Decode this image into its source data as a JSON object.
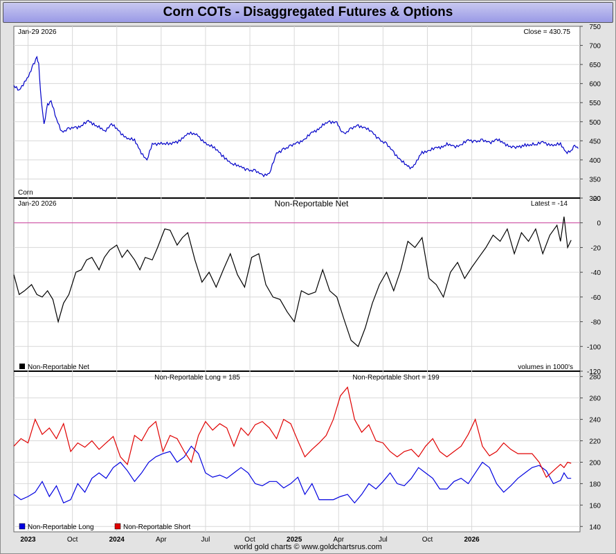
{
  "title": "Corn COTs - Disaggregated Futures & Options",
  "footer": "world gold charts © www.goldchartsrus.com",
  "colors": {
    "price": "#0000c8",
    "net": "#000000",
    "long": "#0000e0",
    "short": "#e00000",
    "zero": "#d040a0"
  },
  "chart_data": [
    {
      "type": "line",
      "panel": "price",
      "date_label": "Jan-29  2026",
      "latest_label": "Close = 430.75",
      "corner_label": "Corn",
      "ylim": [
        300,
        750
      ],
      "yticks": [
        300,
        350,
        400,
        450,
        500,
        550,
        600,
        650,
        700,
        750
      ],
      "x_range": [
        2022.92,
        2026.11
      ],
      "series": [
        {
          "x": [
            2022.92,
            2022.95,
            2022.98,
            2023.01,
            2023.03,
            2023.05,
            2023.06,
            2023.07,
            2023.09,
            2023.11,
            2023.13,
            2023.16,
            2023.19,
            2023.23,
            2023.27,
            2023.3,
            2023.34,
            2023.37,
            2023.4,
            2023.43,
            2023.47,
            2023.5,
            2023.55,
            2023.6,
            2023.63,
            2023.67,
            2023.7,
            2023.75,
            2023.8,
            2023.85,
            2023.9,
            2023.95,
            2024.0,
            2024.05,
            2024.1,
            2024.15,
            2024.2,
            2024.24,
            2024.28,
            2024.32,
            2024.36,
            2024.4,
            2024.44,
            2024.48,
            2024.52,
            2024.56,
            2024.6,
            2024.63,
            2024.66,
            2024.7,
            2024.74,
            2024.76,
            2024.78,
            2024.82,
            2024.86,
            2024.9,
            2024.94,
            2024.98,
            2025.02,
            2025.06,
            2025.1,
            2025.13,
            2025.16,
            2025.19,
            2025.22,
            2025.26,
            2025.3,
            2025.33,
            2025.36,
            2025.4,
            2025.44,
            2025.48,
            2025.52,
            2025.56,
            2025.6,
            2025.64,
            2025.67,
            2025.7,
            2025.74,
            2025.8,
            2025.86,
            2025.9,
            2025.95,
            2026.0,
            2026.03,
            2026.06,
            2026.08,
            2026.1
          ],
          "y": [
            595,
            580,
            605,
            625,
            650,
            670,
            650,
            580,
            490,
            545,
            555,
            505,
            475,
            480,
            485,
            490,
            500,
            495,
            485,
            475,
            495,
            480,
            460,
            450,
            425,
            400,
            440,
            445,
            440,
            450,
            470,
            465,
            445,
            430,
            410,
            390,
            380,
            375,
            370,
            360,
            365,
            415,
            430,
            435,
            445,
            455,
            470,
            480,
            490,
            500,
            500,
            475,
            470,
            480,
            490,
            485,
            470,
            455,
            440,
            420,
            400,
            385,
            380,
            395,
            420,
            425,
            430,
            435,
            440,
            435,
            440,
            450,
            450,
            450,
            445,
            455,
            445,
            440,
            430,
            440,
            440,
            445,
            440,
            440,
            420,
            425,
            435,
            430
          ]
        }
      ]
    },
    {
      "type": "line",
      "panel": "net",
      "date_label": "Jan-20  2026",
      "title": "Non-Reportable Net",
      "latest_label": "Latest = -14",
      "legend_label": "Non-Reportable Net",
      "units_label": "volumes in 1000's",
      "ylim": [
        -120,
        20
      ],
      "yticks": [
        -120,
        -100,
        -80,
        -60,
        -40,
        -20,
        0,
        20
      ],
      "x_range": [
        2022.92,
        2026.11
      ],
      "series": [
        {
          "name": "Non-Reportable Net",
          "x": [
            2022.92,
            2022.95,
            2022.98,
            2023.02,
            2023.05,
            2023.08,
            2023.11,
            2023.14,
            2023.17,
            2023.2,
            2023.23,
            2023.27,
            2023.3,
            2023.33,
            2023.36,
            2023.4,
            2023.43,
            2023.46,
            2023.5,
            2023.53,
            2023.56,
            2023.6,
            2023.63,
            2023.66,
            2023.7,
            2023.73,
            2023.77,
            2023.8,
            2023.84,
            2023.87,
            2023.9,
            2023.94,
            2023.98,
            2024.02,
            2024.06,
            2024.1,
            2024.14,
            2024.18,
            2024.22,
            2024.26,
            2024.3,
            2024.34,
            2024.38,
            2024.42,
            2024.46,
            2024.5,
            2024.54,
            2024.58,
            2024.62,
            2024.66,
            2024.7,
            2024.74,
            2024.78,
            2024.82,
            2024.86,
            2024.9,
            2024.94,
            2024.98,
            2025.02,
            2025.06,
            2025.1,
            2025.14,
            2025.18,
            2025.22,
            2025.26,
            2025.3,
            2025.34,
            2025.38,
            2025.42,
            2025.46,
            2025.5,
            2025.54,
            2025.58,
            2025.62,
            2025.66,
            2025.7,
            2025.74,
            2025.78,
            2025.82,
            2025.86,
            2025.9,
            2025.94,
            2025.98,
            2026.0,
            2026.02,
            2026.04,
            2026.06
          ],
          "y": [
            -42,
            -58,
            -55,
            -50,
            -58,
            -60,
            -55,
            -62,
            -80,
            -65,
            -58,
            -40,
            -38,
            -30,
            -28,
            -38,
            -28,
            -22,
            -18,
            -28,
            -22,
            -30,
            -38,
            -28,
            -30,
            -20,
            -5,
            -6,
            -18,
            -12,
            -8,
            -30,
            -48,
            -40,
            -52,
            -38,
            -25,
            -42,
            -52,
            -28,
            -25,
            -50,
            -60,
            -62,
            -72,
            -80,
            -55,
            -58,
            -56,
            -38,
            -55,
            -60,
            -78,
            -95,
            -100,
            -85,
            -65,
            -50,
            -40,
            -55,
            -38,
            -15,
            -20,
            -12,
            -45,
            -50,
            -60,
            -40,
            -32,
            -45,
            -36,
            -28,
            -20,
            -10,
            -15,
            -5,
            -25,
            -8,
            -15,
            -5,
            -25,
            -10,
            -2,
            -15,
            5,
            -20,
            -14
          ]
        }
      ]
    },
    {
      "type": "line",
      "panel": "long-short",
      "long_label": "Non-Reportable Long = 185",
      "short_label": "Non-Reportable Short = 199",
      "ylim": [
        135,
        285
      ],
      "yticks": [
        140,
        160,
        180,
        200,
        220,
        240,
        260,
        280
      ],
      "x_range": [
        2022.92,
        2026.11
      ],
      "xticks": [
        {
          "x": 2023.0,
          "label": "2023",
          "major": true
        },
        {
          "x": 2023.25,
          "label": "Oct",
          "major": false
        },
        {
          "x": 2023.5,
          "label": "2024",
          "major": true
        },
        {
          "x": 2023.75,
          "label": "Apr",
          "major": false
        },
        {
          "x": 2024.0,
          "label": "Jul",
          "major": false
        },
        {
          "x": 2024.25,
          "label": "Oct",
          "major": false
        },
        {
          "x": 2024.5,
          "label": "2025",
          "major": true
        },
        {
          "x": 2024.75,
          "label": "Apr",
          "major": false
        },
        {
          "x": 2025.0,
          "label": "Jul",
          "major": false
        },
        {
          "x": 2025.25,
          "label": "Oct",
          "major": false
        },
        {
          "x": 2025.5,
          "label": "2026",
          "major": true
        }
      ],
      "series": [
        {
          "name": "Non-Reportable Long",
          "color": "#0000e0",
          "x": [
            2022.92,
            2022.96,
            2023.0,
            2023.04,
            2023.08,
            2023.12,
            2023.16,
            2023.2,
            2023.24,
            2023.28,
            2023.32,
            2023.36,
            2023.4,
            2023.44,
            2023.48,
            2023.52,
            2023.56,
            2023.6,
            2023.64,
            2023.68,
            2023.72,
            2023.76,
            2023.8,
            2023.84,
            2023.88,
            2023.92,
            2023.96,
            2024.0,
            2024.04,
            2024.08,
            2024.12,
            2024.16,
            2024.2,
            2024.24,
            2024.28,
            2024.32,
            2024.36,
            2024.4,
            2024.44,
            2024.48,
            2024.52,
            2024.56,
            2024.6,
            2024.64,
            2024.68,
            2024.72,
            2024.76,
            2024.8,
            2024.84,
            2024.88,
            2024.92,
            2024.96,
            2025.0,
            2025.04,
            2025.08,
            2025.12,
            2025.16,
            2025.2,
            2025.24,
            2025.28,
            2025.32,
            2025.36,
            2025.4,
            2025.44,
            2025.48,
            2025.52,
            2025.56,
            2025.6,
            2025.64,
            2025.68,
            2025.72,
            2025.76,
            2025.8,
            2025.84,
            2025.88,
            2025.92,
            2025.96,
            2026.0,
            2026.02,
            2026.04,
            2026.06
          ],
          "y": [
            170,
            165,
            168,
            172,
            182,
            168,
            178,
            162,
            165,
            180,
            172,
            185,
            190,
            185,
            195,
            200,
            192,
            182,
            190,
            200,
            205,
            208,
            210,
            200,
            205,
            215,
            208,
            190,
            186,
            188,
            185,
            190,
            195,
            190,
            180,
            178,
            182,
            182,
            176,
            180,
            186,
            170,
            180,
            165,
            165,
            165,
            168,
            170,
            162,
            170,
            180,
            175,
            182,
            190,
            180,
            178,
            185,
            195,
            190,
            185,
            175,
            175,
            182,
            185,
            180,
            190,
            200,
            195,
            180,
            172,
            178,
            185,
            190,
            195,
            197,
            192,
            180,
            183,
            190,
            185,
            185
          ]
        },
        {
          "name": "Non-Reportable Short",
          "color": "#e00000",
          "x": [
            2022.92,
            2022.96,
            2023.0,
            2023.04,
            2023.08,
            2023.12,
            2023.16,
            2023.2,
            2023.24,
            2023.28,
            2023.32,
            2023.36,
            2023.4,
            2023.44,
            2023.48,
            2023.52,
            2023.56,
            2023.6,
            2023.64,
            2023.68,
            2023.72,
            2023.76,
            2023.8,
            2023.84,
            2023.88,
            2023.92,
            2023.96,
            2024.0,
            2024.04,
            2024.08,
            2024.12,
            2024.16,
            2024.2,
            2024.24,
            2024.28,
            2024.32,
            2024.36,
            2024.4,
            2024.44,
            2024.48,
            2024.52,
            2024.56,
            2024.6,
            2024.64,
            2024.68,
            2024.72,
            2024.76,
            2024.8,
            2024.84,
            2024.88,
            2024.92,
            2024.96,
            2025.0,
            2025.04,
            2025.08,
            2025.12,
            2025.16,
            2025.2,
            2025.24,
            2025.28,
            2025.32,
            2025.36,
            2025.4,
            2025.44,
            2025.48,
            2025.52,
            2025.56,
            2025.6,
            2025.64,
            2025.68,
            2025.72,
            2025.76,
            2025.8,
            2025.84,
            2025.88,
            2025.92,
            2025.96,
            2026.0,
            2026.02,
            2026.04,
            2026.06
          ],
          "y": [
            215,
            222,
            218,
            240,
            226,
            232,
            222,
            236,
            210,
            218,
            214,
            220,
            212,
            218,
            224,
            205,
            198,
            225,
            220,
            232,
            238,
            210,
            225,
            222,
            210,
            200,
            225,
            238,
            230,
            236,
            232,
            215,
            232,
            225,
            235,
            238,
            232,
            222,
            240,
            236,
            220,
            205,
            212,
            218,
            225,
            240,
            262,
            270,
            240,
            228,
            235,
            220,
            218,
            210,
            205,
            210,
            212,
            205,
            215,
            222,
            210,
            205,
            210,
            215,
            226,
            240,
            215,
            206,
            210,
            218,
            212,
            208,
            208,
            208,
            200,
            186,
            192,
            198,
            195,
            200,
            199
          ]
        }
      ]
    }
  ]
}
